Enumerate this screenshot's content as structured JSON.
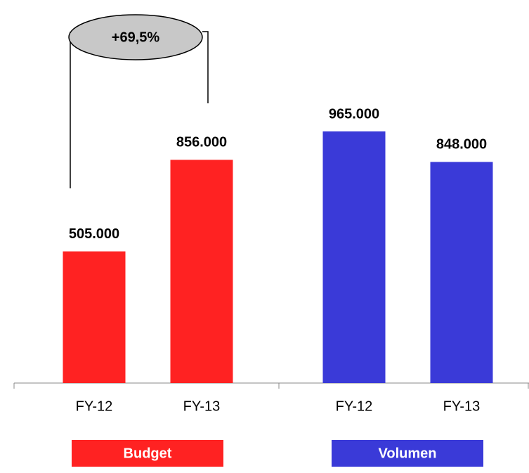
{
  "chart_data": {
    "type": "bar",
    "annotation": "+69,5%",
    "categories": [
      "FY-12",
      "FY-13"
    ],
    "series": [
      {
        "name": "Budget",
        "color": "#ff2222",
        "values": [
          505000,
          856000
        ],
        "value_labels": [
          "505.000",
          "856.000"
        ]
      },
      {
        "name": "Volumen",
        "color": "#3a3ad8",
        "values": [
          965000,
          848000
        ],
        "value_labels": [
          "965.000",
          "848.000"
        ]
      }
    ]
  }
}
